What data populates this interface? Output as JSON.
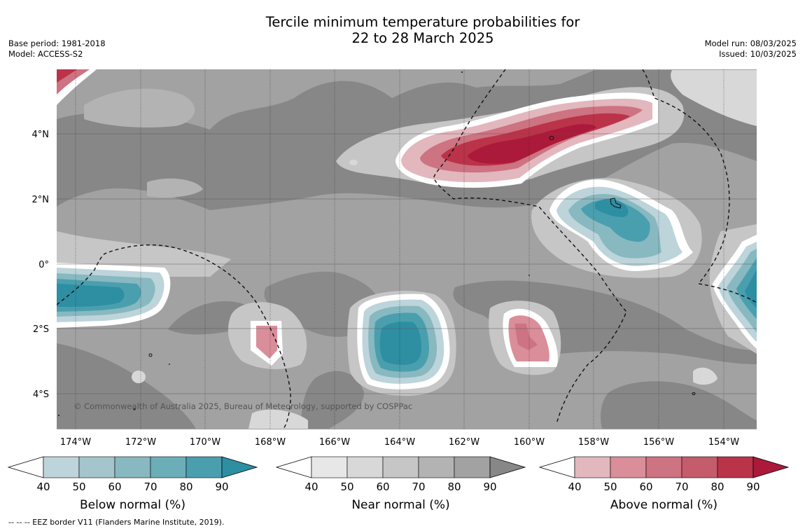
{
  "header": {
    "title_line1": "Tercile minimum temperature probabilities for",
    "title_line2": "22 to 28 March 2025",
    "base_period": "Base period: 1981-2018",
    "model": "Model: ACCESS-S2",
    "model_run": "Model run: 08/03/2025",
    "issued": "Issued: 10/03/2025"
  },
  "map": {
    "lat_labels": [
      "4°N",
      "2°N",
      "0°",
      "2°S",
      "4°S"
    ],
    "lon_labels": [
      "174°W",
      "172°W",
      "170°W",
      "168°W",
      "166°W",
      "164°W",
      "162°W",
      "160°W",
      "158°W",
      "156°W",
      "154°W"
    ],
    "copyright": "© Commonwealth of Australia 2025, Bureau of Meteorology, supported by COSPPac"
  },
  "legends": [
    {
      "name": "below",
      "label": "Below normal (%)",
      "ticks": [
        "40",
        "50",
        "60",
        "70",
        "80",
        "90"
      ],
      "colors": [
        "#bcd4da",
        "#a4c5cb",
        "#88b8c0",
        "#6baeb8",
        "#4a9fae",
        "#2e8ea2"
      ]
    },
    {
      "name": "near",
      "label": "Near normal (%)",
      "ticks": [
        "40",
        "50",
        "60",
        "70",
        "80",
        "90"
      ],
      "colors": [
        "#e7e7e7",
        "#d8d8d8",
        "#c6c6c6",
        "#b3b3b3",
        "#a2a2a2",
        "#878787"
      ]
    },
    {
      "name": "above",
      "label": "Above normal (%)",
      "ticks": [
        "40",
        "50",
        "60",
        "70",
        "80",
        "90"
      ],
      "colors": [
        "#e2b7bd",
        "#d98e9a",
        "#cd7381",
        "#c45c6b",
        "#bb3349",
        "#ab1a3a"
      ]
    }
  ],
  "footnote": "--  --  -- EEZ border V11 (Flanders Marine Institute, 2019)."
}
